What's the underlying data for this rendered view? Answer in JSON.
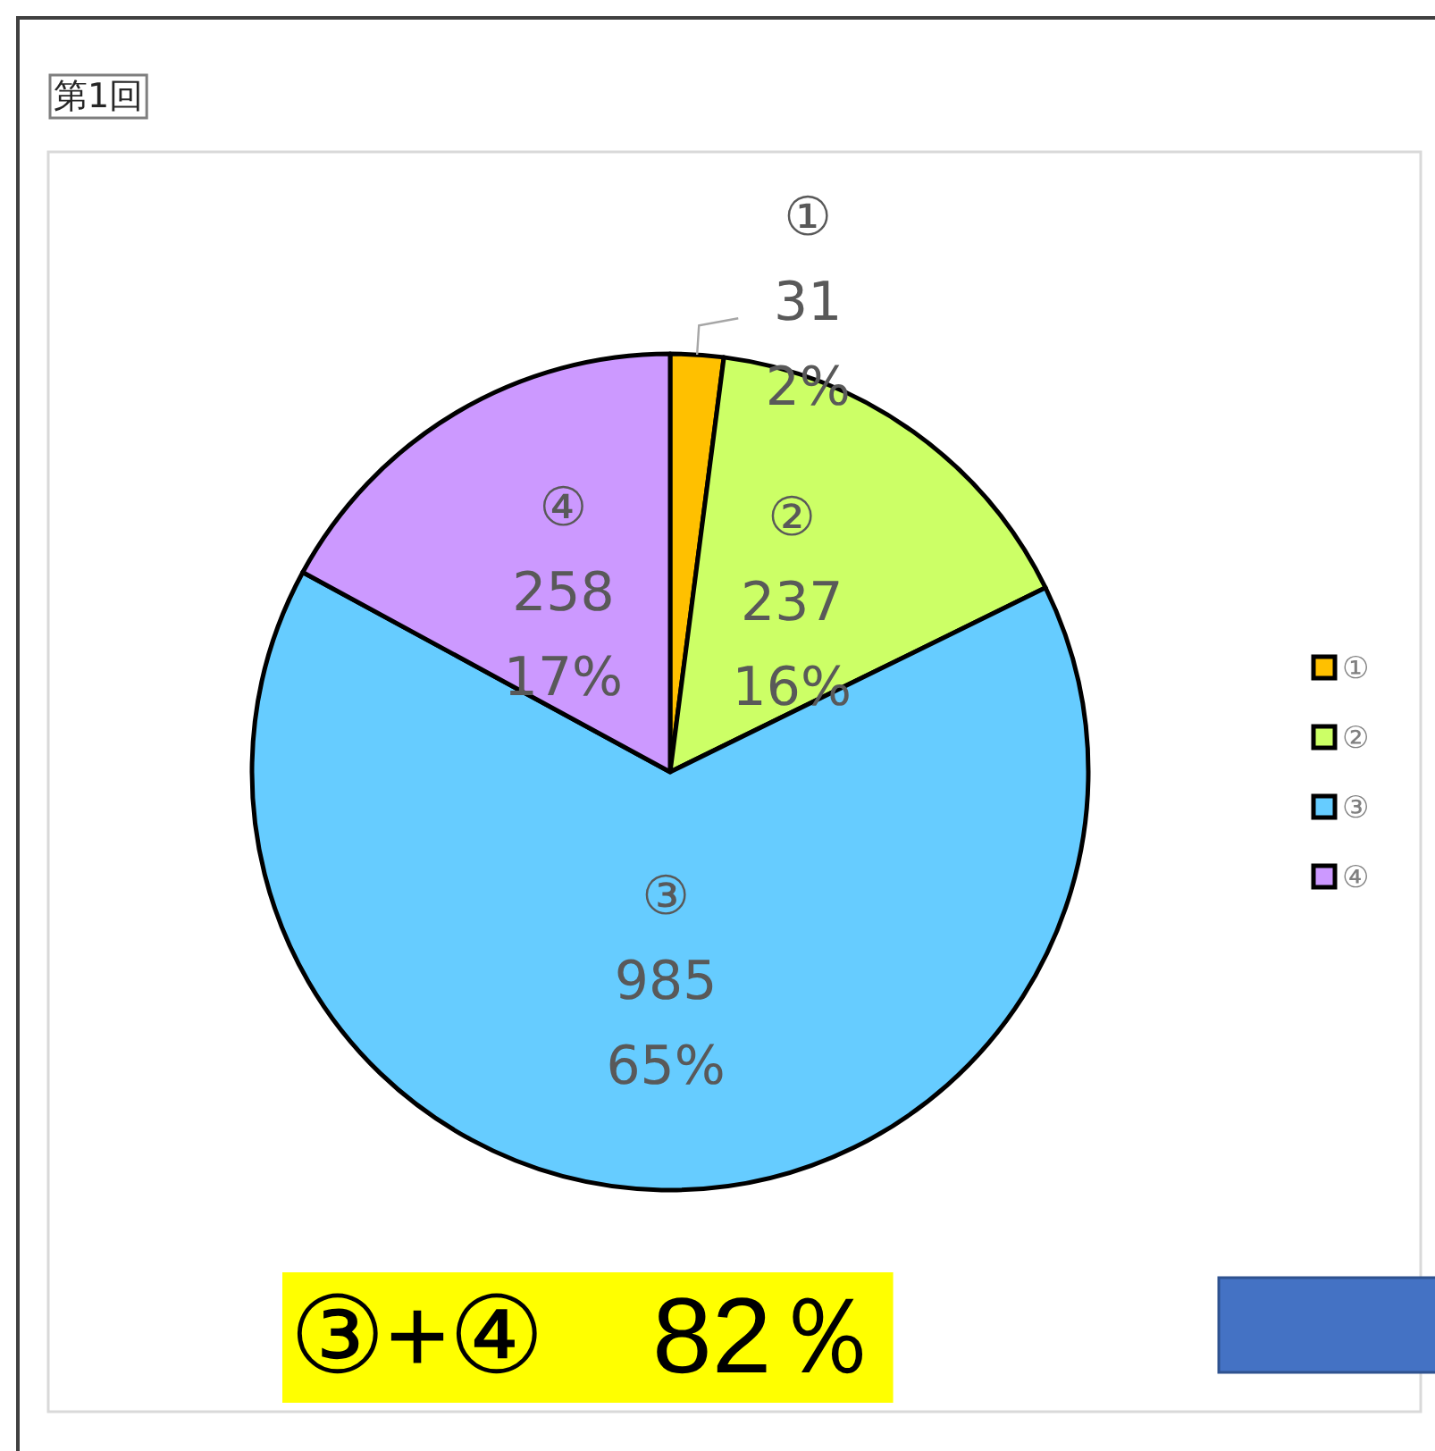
{
  "chart_data": {
    "type": "pie",
    "title": "第1回",
    "categories": [
      "①",
      "②",
      "③",
      "④"
    ],
    "values": [
      31,
      237,
      985,
      258
    ],
    "colors": [
      "#ffc000",
      "#ccff66",
      "#66ccff",
      "#cc99ff"
    ],
    "value_labels": [
      "31\n2%",
      "237\n16%",
      "985\n65%",
      "258\n17%"
    ],
    "legend": "right",
    "annotations": [
      "③+④　82％"
    ]
  }
}
